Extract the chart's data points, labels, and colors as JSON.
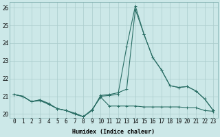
{
  "title": "",
  "xlabel": "Humidex (Indice chaleur)",
  "ylabel": "",
  "background_color": "#cce8e8",
  "grid_color": "#aacccc",
  "line_color": "#2a6e65",
  "xlim": [
    -0.5,
    23.5
  ],
  "ylim": [
    19.8,
    26.3
  ],
  "yticks": [
    20,
    21,
    22,
    23,
    24,
    25,
    26
  ],
  "xticks": [
    0,
    1,
    2,
    3,
    4,
    5,
    6,
    7,
    8,
    9,
    10,
    11,
    12,
    13,
    14,
    15,
    16,
    17,
    18,
    19,
    20,
    21,
    22,
    23
  ],
  "line1_x": [
    0,
    1,
    2,
    3,
    4,
    5,
    6,
    7,
    8,
    9,
    10,
    11,
    12,
    13,
    14,
    15,
    16,
    17,
    18,
    19,
    20,
    21,
    22,
    23
  ],
  "line1_y": [
    21.1,
    21.0,
    20.7,
    20.8,
    20.6,
    20.3,
    20.2,
    20.0,
    19.85,
    20.2,
    21.05,
    21.1,
    21.2,
    21.4,
    25.9,
    24.5,
    23.2,
    22.5,
    21.6,
    21.5,
    21.55,
    21.3,
    20.85,
    20.2
  ],
  "line2_x": [
    0,
    1,
    2,
    3,
    4,
    5,
    6,
    7,
    8,
    9,
    10,
    11,
    12,
    13,
    14,
    15,
    16,
    17,
    18,
    19,
    20,
    21,
    22,
    23
  ],
  "line2_y": [
    21.1,
    21.0,
    20.7,
    20.8,
    20.55,
    20.3,
    20.2,
    20.0,
    19.85,
    20.2,
    21.0,
    21.05,
    21.1,
    23.8,
    26.1,
    24.5,
    23.2,
    22.5,
    21.6,
    21.5,
    21.55,
    21.3,
    20.85,
    20.2
  ],
  "line3_x": [
    0,
    1,
    2,
    3,
    4,
    5,
    6,
    7,
    8,
    9,
    10,
    11,
    12,
    13,
    14,
    15,
    16,
    17,
    18,
    19,
    20,
    21,
    22,
    23
  ],
  "line3_y": [
    21.1,
    21.0,
    20.7,
    20.75,
    20.55,
    20.3,
    20.2,
    20.05,
    19.85,
    20.25,
    20.95,
    20.45,
    20.45,
    20.45,
    20.45,
    20.4,
    20.4,
    20.4,
    20.4,
    20.4,
    20.35,
    20.35,
    20.2,
    20.15
  ],
  "marker": "+",
  "markersize": 3,
  "linewidth": 0.8,
  "label_fontsize": 6,
  "tick_fontsize": 5.5
}
